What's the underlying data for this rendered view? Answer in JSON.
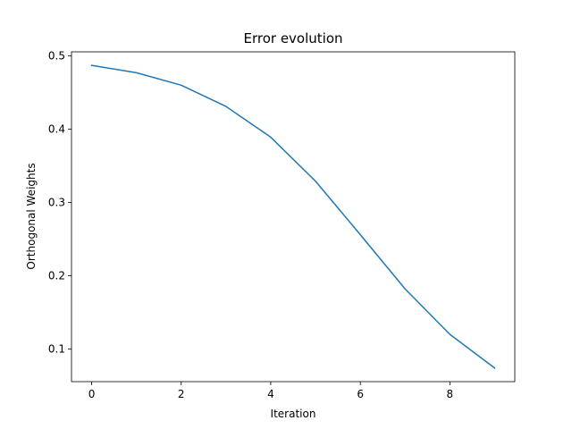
{
  "chart_data": {
    "type": "line",
    "title": "Error evolution",
    "xlabel": "Iteration",
    "ylabel": "Orthogonal Weights",
    "xlim": [
      -0.45,
      9.45
    ],
    "ylim": [
      0.0555,
      0.5055
    ],
    "xticks": [
      0,
      2,
      4,
      6,
      8
    ],
    "yticks": [
      0.1,
      0.2,
      0.3,
      0.4,
      0.5
    ],
    "xtick_labels": [
      "0",
      "2",
      "4",
      "6",
      "8"
    ],
    "ytick_labels": [
      "0.1",
      "0.2",
      "0.3",
      "0.4",
      "0.5"
    ],
    "grid": false,
    "series": [
      {
        "color": "#1f77b4",
        "x": [
          0,
          1,
          2,
          3,
          4,
          5,
          6,
          7,
          8,
          9
        ],
        "y": [
          0.487,
          0.477,
          0.46,
          0.431,
          0.389,
          0.329,
          0.256,
          0.182,
          0.12,
          0.074
        ]
      }
    ]
  }
}
